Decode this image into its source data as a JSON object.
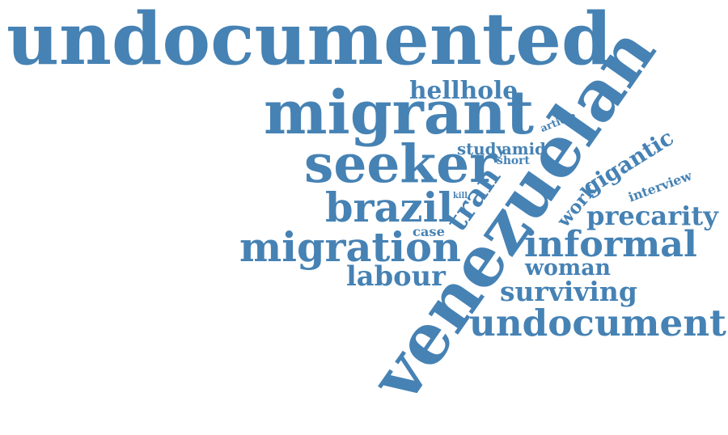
{
  "word_cloud": {
    "color": "#4682b4",
    "background": "#ffffff",
    "words": [
      {
        "text": "undocumented"
      },
      {
        "text": "venezuelan"
      },
      {
        "text": "migrant"
      },
      {
        "text": "seeker"
      },
      {
        "text": "brazil"
      },
      {
        "text": "migration"
      },
      {
        "text": "undocument"
      },
      {
        "text": "informal"
      },
      {
        "text": "precarity"
      },
      {
        "text": "surviving"
      },
      {
        "text": "labour"
      },
      {
        "text": "hellhole"
      },
      {
        "text": "tran"
      },
      {
        "text": "gigantic"
      },
      {
        "text": "woman"
      },
      {
        "text": "interview"
      },
      {
        "text": "work"
      },
      {
        "text": "study"
      },
      {
        "text": "amid"
      },
      {
        "text": "article"
      },
      {
        "text": "short"
      },
      {
        "text": "case"
      },
      {
        "text": "kill"
      }
    ]
  }
}
